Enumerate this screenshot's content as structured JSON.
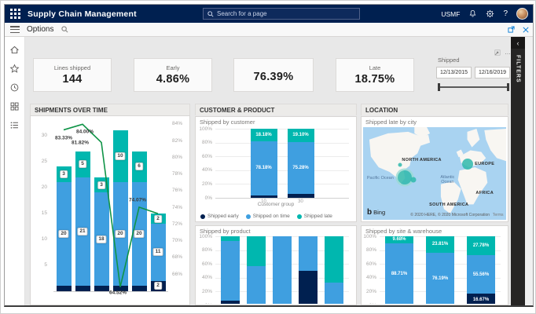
{
  "topbar": {
    "app_title": "Supply Chain Management",
    "search_placeholder": "Search for a page",
    "company": "USMF",
    "help_label": "?"
  },
  "options_bar": {
    "label": "Options"
  },
  "filters_panel": {
    "label": "FILTERS",
    "collapse_glyph": "‹"
  },
  "kpis": [
    {
      "label": "Lines shipped",
      "value": "144"
    },
    {
      "label": "Early",
      "value": "4.86%"
    },
    {
      "label": "",
      "value": "76.39%"
    },
    {
      "label": "Late",
      "value": "18.75%"
    }
  ],
  "date_slicer": {
    "label": "Shipped",
    "start": "12/13/2015",
    "end": "12/16/2019",
    "more_glyph": "…"
  },
  "panels": [
    {
      "title": "SHIPMENTS OVER TIME"
    },
    {
      "title": "CUSTOMER & PRODUCT"
    },
    {
      "title": "LOCATION"
    }
  ],
  "legend": [
    "Shipped early",
    "Shipped on time",
    "Shipped late"
  ],
  "colors": {
    "early": "#002050",
    "on_time": "#3f9fe0",
    "late": "#00b7af",
    "line": "#0f9447",
    "accent": "#002050"
  },
  "chart_data": [
    {
      "id": "shipments_over_time",
      "type": "bar",
      "subtype": "stacked-column-with-line",
      "title": "SHIPMENTS OVER TIME",
      "categories": [
        "",
        "",
        "",
        "",
        "",
        ""
      ],
      "series": [
        {
          "name": "Shipped early",
          "values": [
            1,
            1,
            1,
            1,
            1,
            2
          ],
          "labels": [
            "",
            "",
            "",
            "",
            "",
            "2"
          ]
        },
        {
          "name": "Shipped on time",
          "values": [
            20,
            21,
            18,
            20,
            20,
            11
          ],
          "labels": [
            "20",
            "21",
            "18",
            "20",
            "20",
            "11"
          ]
        },
        {
          "name": "Shipped late",
          "values": [
            3,
            5,
            3,
            10,
            6,
            2
          ],
          "labels": [
            "3",
            "5",
            "3",
            "10",
            "6",
            "2"
          ]
        }
      ],
      "line": {
        "name": "On time %",
        "values": [
          83.33,
          84.0,
          81.82,
          64.52,
          74.07,
          73.3
        ],
        "labels": [
          "83.33%",
          "84.00%",
          "81.82%",
          "64.52%",
          "74.07%",
          ""
        ]
      },
      "y_left": {
        "min": 0,
        "max": 33,
        "ticks": [
          5,
          10,
          15,
          20,
          25,
          30
        ]
      },
      "y_right": {
        "min": 64,
        "max": 84,
        "ticks": [
          "84%",
          "82%",
          "80%",
          "78%",
          "76%",
          "74%",
          "72%",
          "70%",
          "68%",
          "66%"
        ]
      }
    },
    {
      "id": "shipped_by_customer",
      "type": "bar",
      "subtype": "stacked-100",
      "title": "Shipped by customer",
      "xlabel": "Customer group",
      "categories": [
        "10",
        "30"
      ],
      "yticks": [
        "100%",
        "80%",
        "60%",
        "40%",
        "20%",
        "0%"
      ],
      "series": [
        {
          "name": "Shipped early",
          "values": [
            3.64,
            5.62
          ],
          "labels": [
            "",
            ""
          ]
        },
        {
          "name": "Shipped on time",
          "values": [
            78.18,
            75.28
          ],
          "labels": [
            "78.18%",
            "75.28%"
          ]
        },
        {
          "name": "Shipped late",
          "values": [
            18.18,
            19.1
          ],
          "labels": [
            "18.18%",
            "19.10%"
          ]
        }
      ],
      "legend": [
        "Shipped early",
        "Shipped on time",
        "Shipped late"
      ]
    },
    {
      "id": "shipped_by_product",
      "type": "bar",
      "subtype": "stacked-100",
      "title": "Shipped by product",
      "categories": [
        "",
        "",
        "",
        "",
        ""
      ],
      "yticks": [
        "100%",
        "80%",
        "60%",
        "40%",
        "20%",
        "0%"
      ],
      "series": [
        {
          "name": "Shipped early",
          "values": [
            6.7,
            0,
            0,
            50,
            0
          ]
        },
        {
          "name": "Shipped on time",
          "values": [
            86.6,
            57.1,
            100,
            50,
            33.3
          ]
        },
        {
          "name": "Shipped late",
          "values": [
            6.7,
            42.9,
            0,
            0,
            66.7
          ]
        }
      ]
    },
    {
      "id": "shipped_by_site_warehouse",
      "type": "bar",
      "subtype": "stacked-100",
      "title": "Shipped by site & warehouse",
      "categories": [
        "",
        "",
        ""
      ],
      "yticks": [
        "100%",
        "80%",
        "60%",
        "40%",
        "20%",
        "0%"
      ],
      "series": [
        {
          "name": "Shipped early",
          "values": [
            1.61,
            0,
            16.67
          ],
          "labels": [
            "",
            "",
            "16.67%"
          ]
        },
        {
          "name": "Shipped on time",
          "values": [
            88.71,
            76.19,
            55.56
          ],
          "labels": [
            "88.71%",
            "76.19%",
            "55.56%"
          ]
        },
        {
          "name": "Shipped late",
          "values": [
            9.68,
            23.81,
            27.78
          ],
          "labels": [
            "9.68%",
            "23.81%",
            "27.78%"
          ]
        }
      ]
    },
    {
      "id": "shipped_late_by_city",
      "type": "map",
      "title": "Shipped late by city",
      "region_labels": [
        {
          "text": "NORTH AMERICA",
          "x": 41,
          "y": 36
        },
        {
          "text": "EUROPE",
          "x": 85,
          "y": 40
        },
        {
          "text": "AFRICA",
          "x": 85,
          "y": 71
        },
        {
          "text": "SOUTH AMERICA",
          "x": 60,
          "y": 84
        },
        {
          "text": "Pacific Ocean",
          "x": 12,
          "y": 55
        },
        {
          "text": "Atlantic Ocean",
          "x": 59,
          "y": 57
        }
      ],
      "bubbles": [
        {
          "x": 29,
          "y": 54,
          "r": 9,
          "big": true
        },
        {
          "x": 35,
          "y": 57,
          "r": 3.5,
          "big": false
        },
        {
          "x": 26,
          "y": 41,
          "r": 2.5,
          "big": false
        },
        {
          "x": 73,
          "y": 40,
          "r": 7,
          "big": false
        }
      ],
      "provider": "Bing",
      "attribution": "© 2020 HERE, © 2020 Microsoft Corporation",
      "terms": "Terms"
    }
  ]
}
